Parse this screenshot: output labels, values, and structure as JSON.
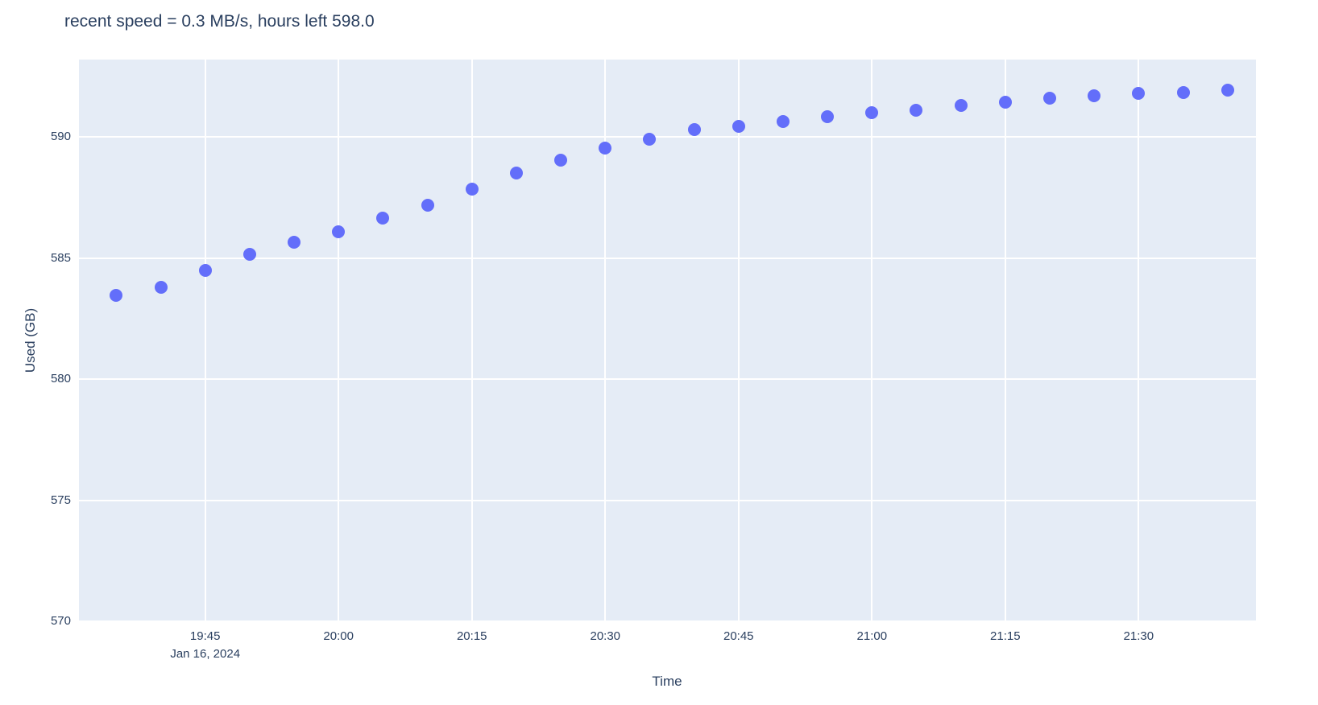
{
  "page": {
    "background_color": "#ffffff"
  },
  "chart_data": {
    "type": "scatter",
    "title": "recent speed = 0.3 MB/s, hours left 598.0",
    "xlabel": "Time",
    "ylabel": "Used (GB)",
    "x_date_label": "Jan 16, 2024",
    "x": [
      "19:35",
      "19:40",
      "19:45",
      "19:50",
      "19:55",
      "20:00",
      "20:05",
      "20:10",
      "20:15",
      "20:20",
      "20:25",
      "20:30",
      "20:35",
      "20:40",
      "20:45",
      "20:50",
      "20:55",
      "21:00",
      "21:05",
      "21:10",
      "21:15",
      "21:20",
      "21:25",
      "21:30",
      "21:35",
      "21:40"
    ],
    "y": [
      583.45,
      583.8,
      584.5,
      585.15,
      585.65,
      586.1,
      586.65,
      587.2,
      587.85,
      588.5,
      589.05,
      589.55,
      589.9,
      590.3,
      590.45,
      590.65,
      590.85,
      591.0,
      591.1,
      591.3,
      591.45,
      591.6,
      591.7,
      591.8,
      591.85,
      591.95
    ],
    "x_ticks": [
      "19:45",
      "20:00",
      "20:15",
      "20:30",
      "20:45",
      "21:00",
      "21:15",
      "21:30"
    ],
    "y_ticks": [
      570,
      575,
      580,
      585,
      590
    ],
    "x_range_minutes": [
      1170.8,
      1303.2
    ],
    "y_range": [
      570,
      593.2
    ],
    "grid": true,
    "legend": false,
    "marker_color": "#636efa",
    "marker_size_px": 16,
    "plot_bg_color": "#e5ecf6",
    "grid_color": "#ffffff",
    "text_color": "#2a3f5f"
  }
}
